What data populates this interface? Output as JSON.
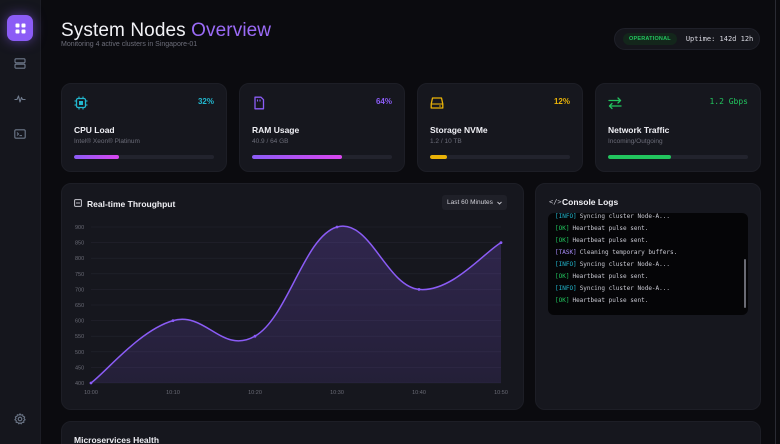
{
  "sidebar": {
    "items": [
      {
        "name": "dashboard",
        "icon": "grid-icon",
        "active": true
      },
      {
        "name": "servers",
        "icon": "server-icon",
        "active": false
      },
      {
        "name": "activity",
        "icon": "pulse-icon",
        "active": false
      },
      {
        "name": "terminal",
        "icon": "terminal-icon",
        "active": false
      },
      {
        "name": "settings",
        "icon": "gear-icon",
        "active": false
      }
    ]
  },
  "header": {
    "title_main": "System Nodes ",
    "title_accent": "Overview",
    "subtitle": "Monitoring 4 active clusters in Singapore-01",
    "status_badge": "OPERATIONAL",
    "uptime": "Uptime: 142d 12h"
  },
  "stats": [
    {
      "title": "CPU Load",
      "subtitle": "Intel® Xeon® Platinum",
      "value": "32%",
      "progress": 0.32,
      "color": "#22b8cf",
      "icon": "cpu-icon"
    },
    {
      "title": "RAM Usage",
      "subtitle": "40.9 / 64 GB",
      "value": "64%",
      "progress": 0.64,
      "color": "#8b5cf6",
      "icon": "memory-icon"
    },
    {
      "title": "Storage NVMe",
      "subtitle": "1.2 / 10 TB",
      "value": "12%",
      "progress": 0.12,
      "color": "#eab308",
      "icon": "hard-drive-icon"
    },
    {
      "title": "Network Traffic",
      "subtitle": "Incoming/Outgoing",
      "value": "1.2 Gbps",
      "progress": 0.45,
      "color": "#22c55e",
      "icon": "transfer-arrows-icon"
    }
  ],
  "throughput": {
    "title": "Real-time Throughput",
    "range_label": "Last 60 Minutes"
  },
  "chart_data": {
    "type": "area",
    "title": "Real-time Throughput",
    "x": [
      "10:00",
      "10:10",
      "10:20",
      "10:30",
      "10:40",
      "10:50"
    ],
    "series": [
      {
        "name": "Throughput",
        "values": [
          400,
          600,
          550,
          900,
          700,
          850
        ]
      }
    ],
    "yticks": [
      400,
      450,
      500,
      550,
      600,
      650,
      700,
      750,
      800,
      850,
      900
    ],
    "ylim": [
      400,
      900
    ],
    "xlabel": "",
    "ylabel": "",
    "grid": true,
    "color": "#8b5cf6"
  },
  "console": {
    "title": "Console Logs",
    "lines": [
      {
        "tag": "[INFO]",
        "tag_color": "#22b8cf",
        "text": "Syncing cluster Node-A..."
      },
      {
        "tag": "[OK]",
        "tag_color": "#22c55e",
        "text": "Heartbeat pulse sent."
      },
      {
        "tag": "[OK]",
        "tag_color": "#22c55e",
        "text": "Heartbeat pulse sent."
      },
      {
        "tag": "[TASK]",
        "tag_color": "#a78bfa",
        "text": "Cleaning temporary buffers."
      },
      {
        "tag": "[INFO]",
        "tag_color": "#22b8cf",
        "text": "Syncing cluster Node-A..."
      },
      {
        "tag": "[OK]",
        "tag_color": "#22c55e",
        "text": "Heartbeat pulse sent."
      },
      {
        "tag": "[INFO]",
        "tag_color": "#22b8cf",
        "text": "Syncing cluster Node-A..."
      },
      {
        "tag": "[OK]",
        "tag_color": "#22c55e",
        "text": "Heartbeat pulse sent."
      }
    ]
  },
  "microservices": {
    "title": "Microservices Health"
  }
}
